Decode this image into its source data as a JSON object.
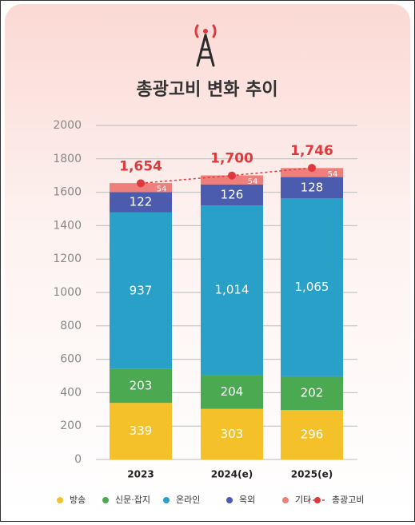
{
  "chart_data": {
    "type": "stacked-bar",
    "title": "총광고비 변화 추이",
    "categories": [
      "2023",
      "2024(e)",
      "2025(e)"
    ],
    "ylim": [
      0,
      2000
    ],
    "yticks": [
      0,
      200,
      400,
      600,
      800,
      1000,
      1200,
      1400,
      1600,
      1800,
      2000
    ],
    "grid": true,
    "legend": "bottom",
    "series": [
      {
        "name": "방송",
        "color": "#f5c12a",
        "values": [
          339,
          303,
          296
        ]
      },
      {
        "name": "신문·잡지",
        "color": "#4ba951",
        "values": [
          203,
          204,
          202
        ]
      },
      {
        "name": "온라인",
        "color": "#29a0c7",
        "values": [
          937,
          1014,
          1065
        ],
        "value_labels": [
          "937",
          "1,014",
          "1,065"
        ]
      },
      {
        "name": "옥외",
        "color": "#4b5cae",
        "values": [
          122,
          126,
          128
        ]
      },
      {
        "name": "기타",
        "color": "#ef7f7b",
        "values": [
          54,
          54,
          54
        ]
      },
      {
        "name": "총광고비",
        "type": "line",
        "dashed": true,
        "color": "#e0393d",
        "values": [
          1654,
          1700,
          1746
        ],
        "value_labels": [
          "1,654",
          "1,700",
          "1,746"
        ]
      }
    ]
  }
}
